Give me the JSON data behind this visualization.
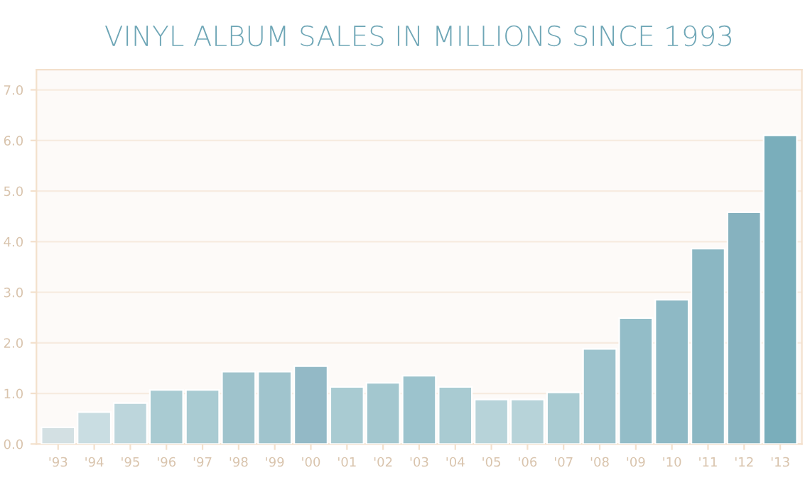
{
  "chart_data": {
    "type": "bar",
    "title": "VINYL ALBUM SALES IN MILLIONS SINCE 1993",
    "categories": [
      "'93",
      "'94",
      "'95",
      "'96",
      "'97",
      "'98",
      "'99",
      "'00",
      "'01",
      "'02",
      "'03",
      "'04",
      "'05",
      "'06",
      "'07",
      "'08",
      "'09",
      "'10",
      "'11",
      "'12",
      "'13"
    ],
    "values": [
      0.33,
      0.63,
      0.81,
      1.07,
      1.07,
      1.43,
      1.43,
      1.54,
      1.13,
      1.21,
      1.35,
      1.13,
      0.88,
      0.88,
      1.02,
      1.88,
      2.49,
      2.85,
      3.86,
      4.58,
      6.1
    ],
    "colors": [
      "#d3e0e3",
      "#c9dde2",
      "#bdd6dc",
      "#a9cbd2",
      "#a9cbd2",
      "#9fc3cc",
      "#a0c4cd",
      "#93b9c6",
      "#a9cbd2",
      "#a3c7cf",
      "#9cc3cd",
      "#a9cbd2",
      "#b7d3d9",
      "#b7d3d9",
      "#a9cbd2",
      "#9dc3cd",
      "#93bdc8",
      "#8eb9c5",
      "#8bb7c3",
      "#86b2bf",
      "#7aaebb"
    ],
    "ylim": [
      0,
      7.4
    ],
    "yticks": [
      {
        "value": 0,
        "label": "0.0"
      },
      {
        "value": 1,
        "label": "1.0"
      },
      {
        "value": 2,
        "label": "2.0"
      },
      {
        "value": 3,
        "label": "3.0"
      },
      {
        "value": 4,
        "label": "4.0"
      },
      {
        "value": 5,
        "label": "5.0"
      },
      {
        "value": 6,
        "label": "6.0"
      },
      {
        "value": 7,
        "label": "7.0"
      }
    ],
    "grid": "y"
  }
}
